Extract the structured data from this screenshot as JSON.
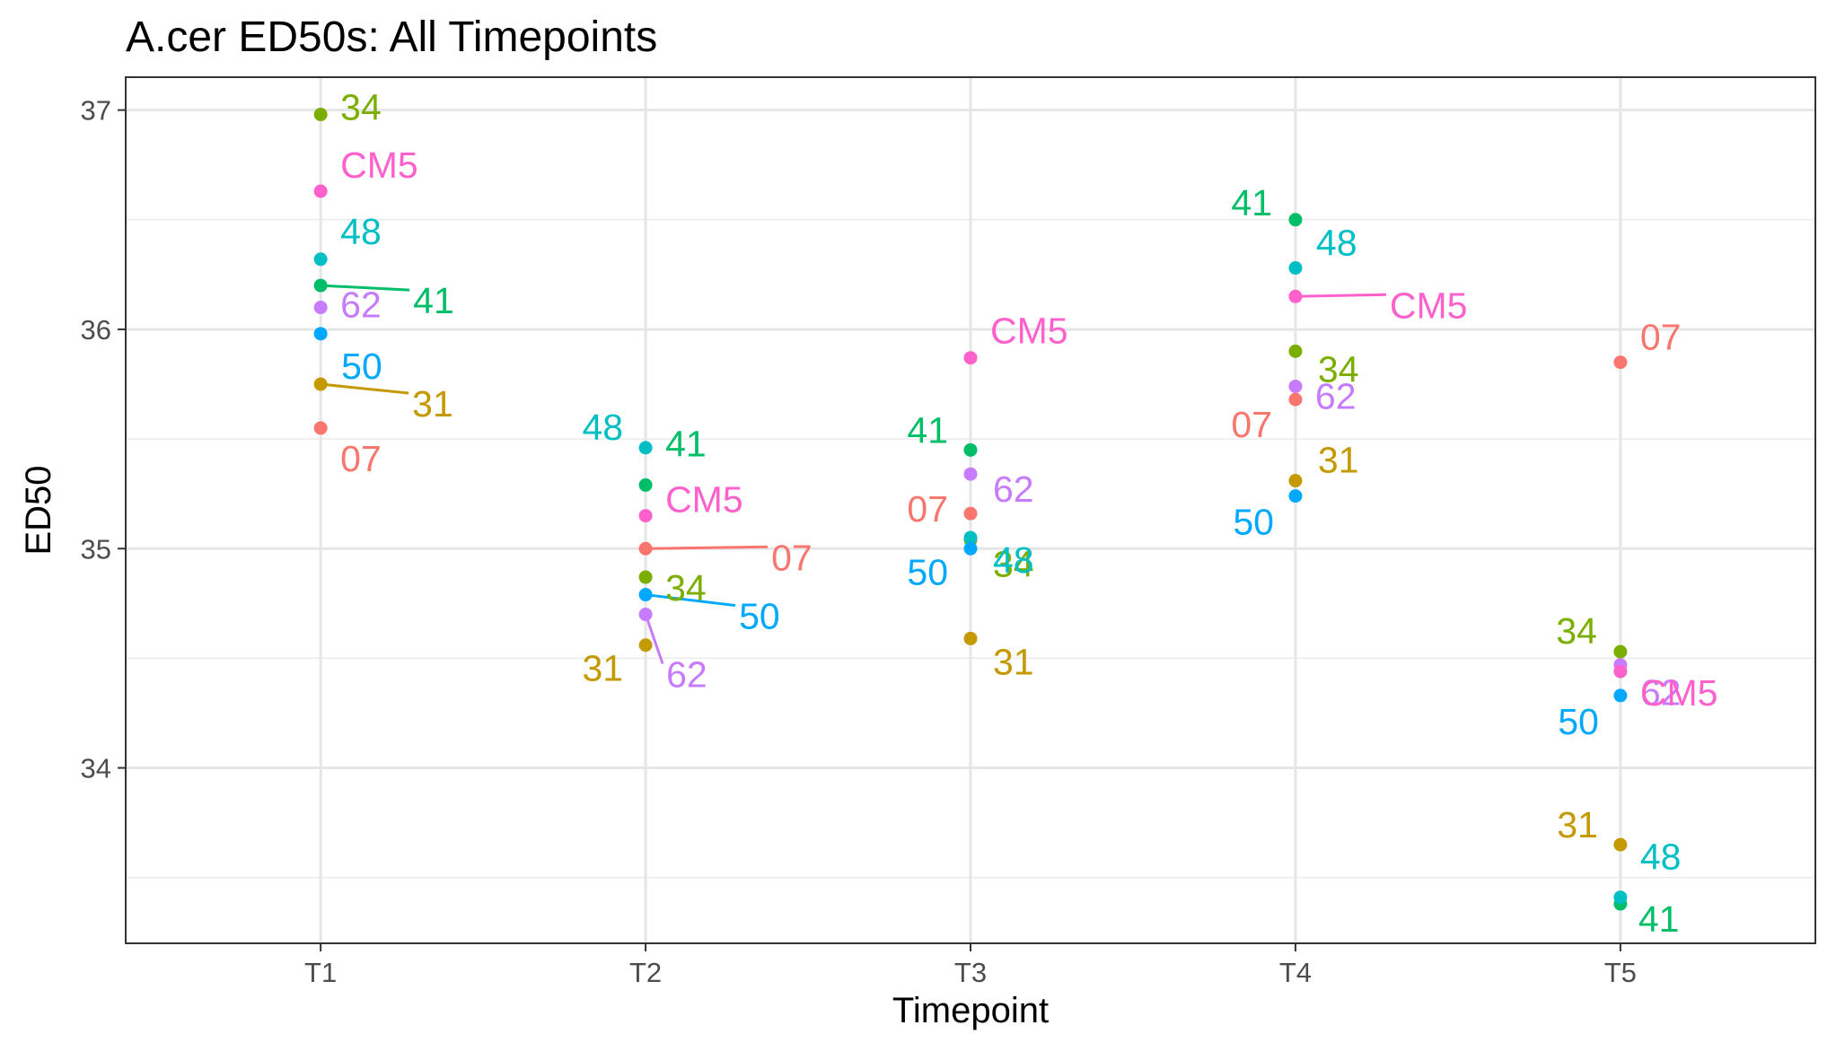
{
  "chart_data": {
    "type": "scatter",
    "title": "A.cer ED50s: All Timepoints",
    "xlabel": "Timepoint",
    "ylabel": "ED50",
    "categories": [
      "T1",
      "T2",
      "T3",
      "T4",
      "T5"
    ],
    "ylim": [
      33.2,
      37.15
    ],
    "yticks": [
      34,
      35,
      36,
      37
    ],
    "grid": true,
    "legend": "none",
    "series": [
      {
        "name": "07",
        "color": "#F8766D",
        "values": [
          35.55,
          35.0,
          35.16,
          35.68,
          35.85
        ]
      },
      {
        "name": "31",
        "color": "#C49A00",
        "values": [
          35.75,
          34.56,
          34.59,
          35.31,
          33.65
        ]
      },
      {
        "name": "34",
        "color": "#7CAE00",
        "values": [
          36.98,
          34.87,
          35.04,
          35.9,
          34.53
        ]
      },
      {
        "name": "41",
        "color": "#00BE67",
        "values": [
          36.2,
          35.29,
          35.45,
          36.5,
          33.38
        ]
      },
      {
        "name": "48",
        "color": "#00BFC4",
        "values": [
          36.32,
          35.46,
          35.05,
          36.28,
          33.41
        ]
      },
      {
        "name": "50",
        "color": "#00A9FF",
        "values": [
          35.98,
          34.79,
          35.0,
          35.24,
          34.33
        ]
      },
      {
        "name": "62",
        "color": "#C77CFF",
        "values": [
          36.1,
          34.7,
          35.34,
          35.74,
          34.47
        ]
      },
      {
        "name": "CM5",
        "color": "#FF61CC",
        "values": [
          36.63,
          35.15,
          35.87,
          36.15,
          34.44
        ]
      }
    ]
  }
}
